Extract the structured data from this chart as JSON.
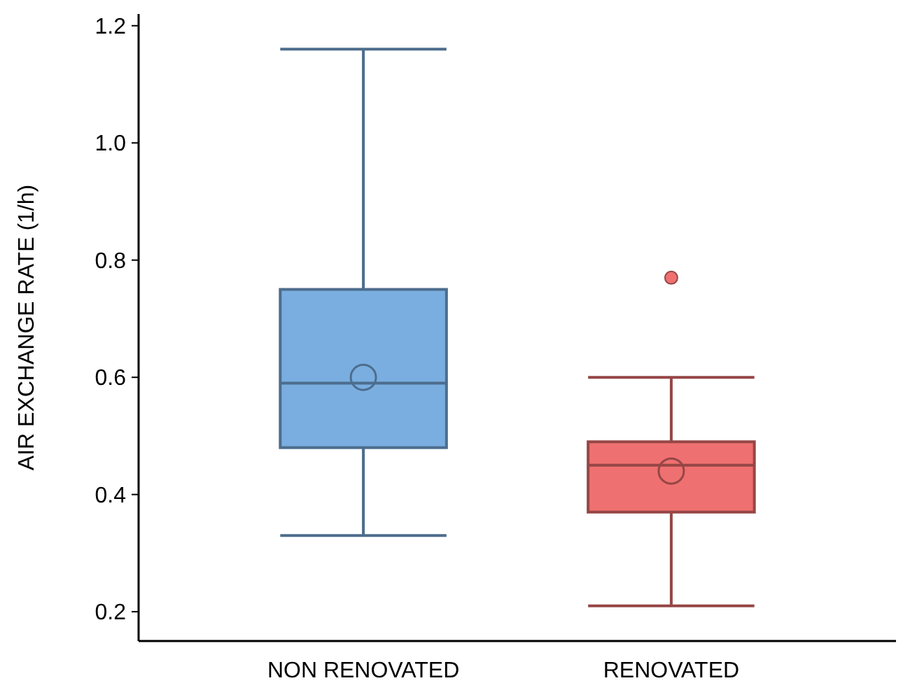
{
  "chart_data": {
    "type": "box",
    "ylabel": "AIR EXCHANGE RATE  (1/h)",
    "categories": [
      "NON RENOVATED",
      "RENOVATED"
    ],
    "ylim": [
      0.15,
      1.22
    ],
    "yticks": [
      0.2,
      0.4,
      0.6,
      0.8,
      {
        "value": 1,
        "label": "1.0"
      },
      1.2
    ],
    "grid": false,
    "colors": [
      "#7aaee0",
      "#ef7070"
    ],
    "boxes": [
      {
        "low": 0.33,
        "q1": 0.48,
        "median": 0.59,
        "q3": 0.75,
        "high": 1.16,
        "mean": 0.6
      },
      {
        "low": 0.21,
        "q1": 0.37,
        "median": 0.45,
        "q3": 0.49,
        "high": 0.6,
        "mean": 0.44,
        "outliers": [
          0.77
        ]
      }
    ]
  }
}
